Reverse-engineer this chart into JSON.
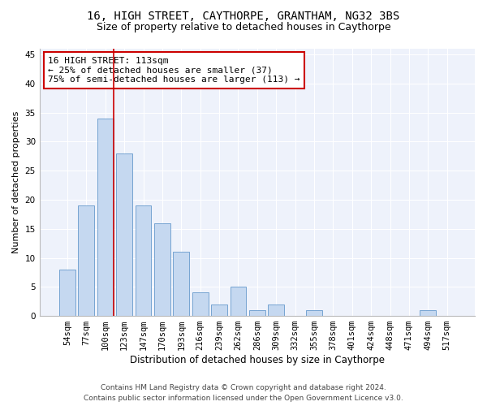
{
  "title1": "16, HIGH STREET, CAYTHORPE, GRANTHAM, NG32 3BS",
  "title2": "Size of property relative to detached houses in Caythorpe",
  "xlabel": "Distribution of detached houses by size in Caythorpe",
  "ylabel": "Number of detached properties",
  "categories": [
    "54sqm",
    "77sqm",
    "100sqm",
    "123sqm",
    "147sqm",
    "170sqm",
    "193sqm",
    "216sqm",
    "239sqm",
    "262sqm",
    "286sqm",
    "309sqm",
    "332sqm",
    "355sqm",
    "378sqm",
    "401sqm",
    "424sqm",
    "448sqm",
    "471sqm",
    "494sqm",
    "517sqm"
  ],
  "values": [
    8,
    19,
    34,
    28,
    19,
    16,
    11,
    4,
    2,
    5,
    1,
    2,
    0,
    1,
    0,
    0,
    0,
    0,
    0,
    1,
    0
  ],
  "bar_color": "#c5d8f0",
  "bar_edge_color": "#6699cc",
  "vline_color": "#cc0000",
  "vline_x_index": 2,
  "annotation_line1": "16 HIGH STREET: 113sqm",
  "annotation_line2": "← 25% of detached houses are smaller (37)",
  "annotation_line3": "75% of semi-detached houses are larger (113) →",
  "annotation_box_color": "#ffffff",
  "annotation_box_edge_color": "#cc0000",
  "ylim": [
    0,
    46
  ],
  "yticks": [
    0,
    5,
    10,
    15,
    20,
    25,
    30,
    35,
    40,
    45
  ],
  "background_color": "#eef2fb",
  "footer1": "Contains HM Land Registry data © Crown copyright and database right 2024.",
  "footer2": "Contains public sector information licensed under the Open Government Licence v3.0.",
  "title1_fontsize": 10,
  "title2_fontsize": 9,
  "xlabel_fontsize": 8.5,
  "ylabel_fontsize": 8,
  "tick_fontsize": 7.5,
  "annotation_fontsize": 8,
  "footer_fontsize": 6.5
}
